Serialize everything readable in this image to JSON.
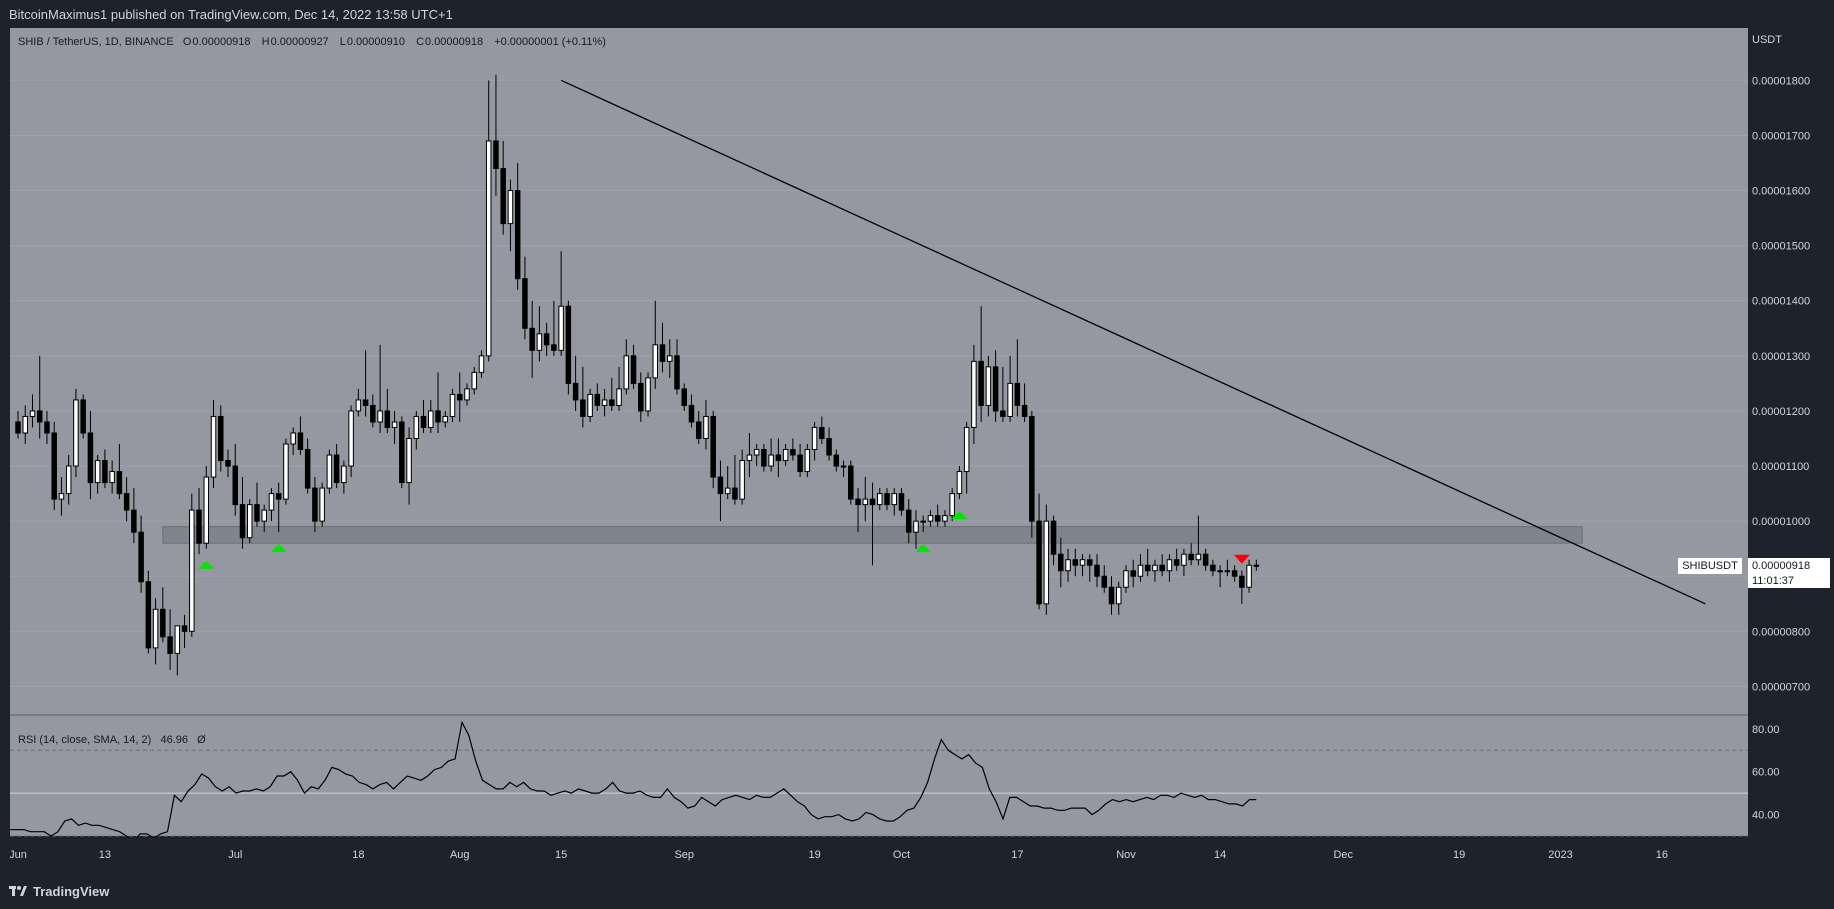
{
  "header": {
    "published_text": "BitcoinMaximus1 published on TradingView.com, Dec 14, 2022 13:58 UTC+1"
  },
  "legend": {
    "symbol": "SHIB / TetherUS, 1D, BINANCE",
    "o_label": "O",
    "o_value": "0.00000918",
    "h_label": "H",
    "h_value": "0.00000927",
    "l_label": "L",
    "l_value": "0.00000910",
    "c_label": "C",
    "c_value": "0.00000918",
    "change": "+0.00000001 (+0.11%)"
  },
  "rsi_legend": {
    "label": "RSI (14, close, SMA, 14, 2)",
    "value": "46.96",
    "extra": "Ø"
  },
  "price_axis": {
    "title": "USDT"
  },
  "price_tag": {
    "symbol": "SHIBUSDT",
    "price": "0.00000918",
    "countdown": "11:01:37"
  },
  "footer": {
    "brand": "TradingView"
  },
  "colors": {
    "pane_bg": "#9598a1",
    "candle_up": "#ffffff",
    "candle_down": "#000000",
    "support_zone": "#7a7d85",
    "marker_up": "#00e600",
    "marker_down": "#ff0000",
    "axis_bg": "#1e222d",
    "axis_text": "#d1d4dc"
  },
  "chart_data": [
    {
      "type": "candlestick",
      "title": "SHIB / TetherUS, 1D, BINANCE",
      "y_axis_unit": "USDT",
      "y_ticks": [
        "0.00001800",
        "0.00001700",
        "0.00001600",
        "0.00001500",
        "0.00001400",
        "0.00001300",
        "0.00001200",
        "0.00001100",
        "0.00001000",
        "0.00000900",
        "0.00000800",
        "0.00000700"
      ],
      "y_tick_values": [
        1800,
        1700,
        1600,
        1500,
        1400,
        1300,
        1200,
        1100,
        1000,
        900,
        800,
        700
      ],
      "y_value_scale": "1e-8",
      "ylim": [
        650,
        1895
      ],
      "x_ticks": [
        "Jun",
        "13",
        "Jul",
        "18",
        "Aug",
        "15",
        "Sep",
        "19",
        "Oct",
        "17",
        "Nov",
        "14",
        "Dec",
        "19",
        "2023",
        "16"
      ],
      "x_tick_days": [
        0,
        12,
        30,
        47,
        61,
        75,
        92,
        110,
        122,
        138,
        153,
        166,
        183,
        199,
        213,
        227
      ],
      "x_start": "2022-06-01",
      "x_unit": "days",
      "candles_ohlc": [
        [
          1180,
          1200,
          1150,
          1160
        ],
        [
          1160,
          1210,
          1140,
          1190
        ],
        [
          1190,
          1230,
          1170,
          1200
        ],
        [
          1200,
          1300,
          1150,
          1180
        ],
        [
          1180,
          1200,
          1140,
          1160
        ],
        [
          1160,
          1180,
          1020,
          1040
        ],
        [
          1040,
          1080,
          1010,
          1050
        ],
        [
          1050,
          1120,
          1030,
          1100
        ],
        [
          1100,
          1240,
          1080,
          1220
        ],
        [
          1220,
          1230,
          1150,
          1160
        ],
        [
          1160,
          1200,
          1040,
          1070
        ],
        [
          1070,
          1120,
          1050,
          1110
        ],
        [
          1110,
          1130,
          1060,
          1070
        ],
        [
          1070,
          1110,
          1050,
          1090
        ],
        [
          1090,
          1140,
          1040,
          1050
        ],
        [
          1050,
          1080,
          1000,
          1020
        ],
        [
          1020,
          1060,
          960,
          980
        ],
        [
          980,
          1010,
          870,
          890
        ],
        [
          890,
          910,
          760,
          770
        ],
        [
          770,
          860,
          740,
          840
        ],
        [
          840,
          880,
          780,
          790
        ],
        [
          790,
          840,
          730,
          760
        ],
        [
          760,
          800,
          720,
          810
        ],
        [
          810,
          830,
          770,
          800
        ],
        [
          800,
          1050,
          790,
          1020
        ],
        [
          1020,
          1060,
          940,
          960
        ],
        [
          960,
          1100,
          950,
          1080
        ],
        [
          1080,
          1220,
          1060,
          1190
        ],
        [
          1190,
          1210,
          1090,
          1110
        ],
        [
          1110,
          1130,
          1080,
          1100
        ],
        [
          1100,
          1140,
          1010,
          1030
        ],
        [
          1030,
          1080,
          950,
          970
        ],
        [
          970,
          1040,
          960,
          1030
        ],
        [
          1030,
          1070,
          990,
          1000
        ],
        [
          1000,
          1030,
          980,
          1020
        ],
        [
          1020,
          1060,
          1000,
          1050
        ],
        [
          1050,
          1070,
          980,
          1040
        ],
        [
          1040,
          1150,
          1030,
          1140
        ],
        [
          1140,
          1170,
          1120,
          1160
        ],
        [
          1160,
          1190,
          1120,
          1130
        ],
        [
          1130,
          1150,
          1050,
          1060
        ],
        [
          1060,
          1080,
          980,
          1000
        ],
        [
          1000,
          1070,
          990,
          1060
        ],
        [
          1060,
          1130,
          1050,
          1120
        ],
        [
          1120,
          1140,
          1060,
          1070
        ],
        [
          1070,
          1110,
          1050,
          1100
        ],
        [
          1100,
          1210,
          1080,
          1200
        ],
        [
          1200,
          1240,
          1190,
          1220
        ],
        [
          1220,
          1310,
          1190,
          1210
        ],
        [
          1210,
          1230,
          1170,
          1180
        ],
        [
          1180,
          1320,
          1160,
          1200
        ],
        [
          1200,
          1240,
          1160,
          1170
        ],
        [
          1170,
          1200,
          1140,
          1180
        ],
        [
          1180,
          1190,
          1060,
          1070
        ],
        [
          1070,
          1170,
          1030,
          1150
        ],
        [
          1150,
          1200,
          1130,
          1190
        ],
        [
          1190,
          1220,
          1160,
          1170
        ],
        [
          1170,
          1220,
          1160,
          1200
        ],
        [
          1200,
          1270,
          1160,
          1180
        ],
        [
          1180,
          1200,
          1170,
          1190
        ],
        [
          1190,
          1240,
          1180,
          1230
        ],
        [
          1230,
          1270,
          1180,
          1220
        ],
        [
          1220,
          1250,
          1210,
          1240
        ],
        [
          1240,
          1280,
          1230,
          1270
        ],
        [
          1270,
          1310,
          1260,
          1300
        ],
        [
          1300,
          1800,
          1290,
          1690
        ],
        [
          1690,
          1810,
          1590,
          1640
        ],
        [
          1640,
          1690,
          1520,
          1540
        ],
        [
          1540,
          1620,
          1490,
          1600
        ],
        [
          1600,
          1650,
          1420,
          1440
        ],
        [
          1440,
          1480,
          1330,
          1350
        ],
        [
          1350,
          1400,
          1260,
          1310
        ],
        [
          1310,
          1390,
          1290,
          1340
        ],
        [
          1340,
          1360,
          1300,
          1320
        ],
        [
          1320,
          1400,
          1300,
          1310
        ],
        [
          1310,
          1490,
          1300,
          1390
        ],
        [
          1390,
          1400,
          1230,
          1250
        ],
        [
          1250,
          1300,
          1200,
          1220
        ],
        [
          1220,
          1280,
          1170,
          1190
        ],
        [
          1190,
          1240,
          1180,
          1230
        ],
        [
          1230,
          1250,
          1200,
          1210
        ],
        [
          1210,
          1240,
          1190,
          1220
        ],
        [
          1220,
          1260,
          1200,
          1210
        ],
        [
          1210,
          1280,
          1200,
          1240
        ],
        [
          1240,
          1330,
          1230,
          1300
        ],
        [
          1300,
          1320,
          1240,
          1250
        ],
        [
          1250,
          1270,
          1180,
          1200
        ],
        [
          1200,
          1270,
          1190,
          1260
        ],
        [
          1260,
          1400,
          1240,
          1320
        ],
        [
          1320,
          1360,
          1270,
          1290
        ],
        [
          1290,
          1330,
          1260,
          1300
        ],
        [
          1300,
          1330,
          1230,
          1240
        ],
        [
          1240,
          1250,
          1200,
          1210
        ],
        [
          1210,
          1230,
          1170,
          1180
        ],
        [
          1180,
          1200,
          1140,
          1150
        ],
        [
          1150,
          1220,
          1130,
          1190
        ],
        [
          1190,
          1200,
          1060,
          1080
        ],
        [
          1080,
          1110,
          1000,
          1050
        ],
        [
          1050,
          1100,
          1040,
          1060
        ],
        [
          1060,
          1120,
          1030,
          1040
        ],
        [
          1040,
          1130,
          1030,
          1110
        ],
        [
          1110,
          1160,
          1080,
          1120
        ],
        [
          1120,
          1140,
          1100,
          1130
        ],
        [
          1130,
          1140,
          1090,
          1100
        ],
        [
          1100,
          1150,
          1090,
          1120
        ],
        [
          1120,
          1150,
          1080,
          1110
        ],
        [
          1110,
          1140,
          1100,
          1130
        ],
        [
          1130,
          1150,
          1110,
          1120
        ],
        [
          1120,
          1140,
          1080,
          1090
        ],
        [
          1090,
          1140,
          1080,
          1130
        ],
        [
          1130,
          1180,
          1110,
          1170
        ],
        [
          1170,
          1190,
          1140,
          1150
        ],
        [
          1150,
          1170,
          1110,
          1120
        ],
        [
          1120,
          1130,
          1090,
          1100
        ],
        [
          1100,
          1110,
          1080,
          1100
        ],
        [
          1100,
          1110,
          1030,
          1040
        ],
        [
          1040,
          1060,
          980,
          1030
        ],
        [
          1030,
          1080,
          1000,
          1040
        ],
        [
          1040,
          1070,
          920,
          1030
        ],
        [
          1030,
          1060,
          1020,
          1050
        ],
        [
          1050,
          1060,
          1020,
          1030
        ],
        [
          1030,
          1060,
          1010,
          1050
        ],
        [
          1050,
          1060,
          1010,
          1020
        ],
        [
          1020,
          1040,
          960,
          980
        ],
        [
          980,
          1020,
          950,
          1000
        ],
        [
          1000,
          1010,
          980,
          1000
        ],
        [
          1000,
          1020,
          990,
          1010
        ],
        [
          1010,
          1030,
          990,
          1000
        ],
        [
          1000,
          1020,
          990,
          1010
        ],
        [
          1010,
          1060,
          1000,
          1050
        ],
        [
          1050,
          1100,
          1040,
          1090
        ],
        [
          1090,
          1180,
          1050,
          1170
        ],
        [
          1170,
          1320,
          1140,
          1290
        ],
        [
          1290,
          1390,
          1180,
          1210
        ],
        [
          1210,
          1300,
          1190,
          1280
        ],
        [
          1280,
          1310,
          1180,
          1200
        ],
        [
          1200,
          1280,
          1180,
          1190
        ],
        [
          1190,
          1300,
          1180,
          1250
        ],
        [
          1250,
          1330,
          1190,
          1210
        ],
        [
          1210,
          1250,
          1180,
          1190
        ],
        [
          1190,
          1200,
          970,
          1000
        ],
        [
          1000,
          1050,
          840,
          850
        ],
        [
          850,
          1030,
          830,
          1000
        ],
        [
          1000,
          1010,
          920,
          940
        ],
        [
          940,
          970,
          880,
          910
        ],
        [
          910,
          950,
          890,
          930
        ],
        [
          930,
          950,
          900,
          920
        ],
        [
          920,
          940,
          900,
          930
        ],
        [
          930,
          940,
          890,
          920
        ],
        [
          920,
          940,
          880,
          900
        ],
        [
          900,
          920,
          870,
          880
        ],
        [
          880,
          900,
          830,
          850
        ],
        [
          850,
          890,
          830,
          880
        ],
        [
          880,
          920,
          870,
          910
        ],
        [
          910,
          930,
          880,
          900
        ],
        [
          900,
          940,
          890,
          920
        ],
        [
          920,
          950,
          900,
          910
        ],
        [
          910,
          930,
          890,
          920
        ],
        [
          920,
          940,
          900,
          910
        ],
        [
          910,
          940,
          890,
          930
        ],
        [
          930,
          950,
          910,
          920
        ],
        [
          920,
          950,
          900,
          940
        ],
        [
          940,
          960,
          920,
          930
        ],
        [
          930,
          1010,
          920,
          940
        ],
        [
          940,
          950,
          910,
          920
        ],
        [
          920,
          930,
          900,
          910
        ],
        [
          910,
          920,
          880,
          910
        ],
        [
          910,
          930,
          900,
          910
        ],
        [
          910,
          920,
          890,
          900
        ],
        [
          900,
          910,
          850,
          880
        ],
        [
          880,
          930,
          870,
          920
        ],
        [
          920,
          930,
          910,
          918
        ]
      ],
      "trendline": [
        [
          75,
          1800
        ],
        [
          233,
          850
        ]
      ],
      "support_zone": {
        "y_low": 960,
        "y_high": 990,
        "x_from": 20,
        "x_to": 216
      },
      "markers": [
        {
          "type": "up",
          "day": 26
        },
        {
          "type": "up",
          "day": 36
        },
        {
          "type": "up",
          "day": 125
        },
        {
          "type": "up",
          "day": 130
        },
        {
          "type": "down",
          "day": 169
        }
      ],
      "last_price_tag": {
        "label": "SHIBUSDT",
        "value": "0.00000918",
        "countdown": "11:01:37"
      }
    },
    {
      "type": "line",
      "title": "RSI (14, close, SMA, 14, 2)",
      "last_value": 46.96,
      "y_ticks": [
        "80.00",
        "60.00",
        "40.00"
      ],
      "y_tick_values": [
        80,
        60,
        40
      ],
      "ylim": [
        30,
        86
      ],
      "levels": [
        70,
        50,
        30
      ],
      "values": [
        33,
        33,
        33,
        32,
        32,
        32,
        30,
        32,
        37,
        38,
        35,
        36,
        35,
        35,
        34,
        33,
        32,
        30,
        27,
        31,
        31,
        29,
        31,
        32,
        49,
        46,
        51,
        54,
        59,
        57,
        53,
        51,
        53,
        50,
        51,
        51,
        52,
        51,
        53,
        58,
        58,
        60,
        56,
        50,
        53,
        52,
        56,
        62,
        61,
        59,
        58,
        55,
        54,
        52,
        54,
        55,
        52,
        55,
        58,
        57,
        56,
        58,
        61,
        62,
        65,
        66,
        83,
        77,
        65,
        56,
        54,
        52,
        52,
        55,
        53,
        55,
        52,
        51,
        51,
        49,
        50,
        51,
        50,
        52,
        51,
        50,
        50,
        52,
        55,
        51,
        50,
        50,
        51,
        49,
        48,
        48,
        52,
        48,
        46,
        43,
        44,
        48,
        46,
        44,
        47,
        48,
        49,
        48,
        47,
        49,
        48,
        48,
        50,
        52,
        49,
        46,
        44,
        40,
        38,
        39,
        39,
        40,
        38,
        37,
        38,
        41,
        40,
        38,
        37,
        37,
        39,
        42,
        43,
        48,
        55,
        66,
        75,
        70,
        68,
        66,
        68,
        64,
        62,
        52,
        46,
        38,
        48,
        48,
        46,
        44,
        44,
        43,
        43,
        42,
        42,
        43,
        43,
        43,
        40,
        42,
        45,
        47,
        46,
        47,
        46,
        47,
        48,
        47,
        49,
        49,
        48,
        50,
        49,
        48,
        49,
        47,
        47,
        46,
        45,
        45,
        44,
        47,
        47
      ]
    }
  ]
}
